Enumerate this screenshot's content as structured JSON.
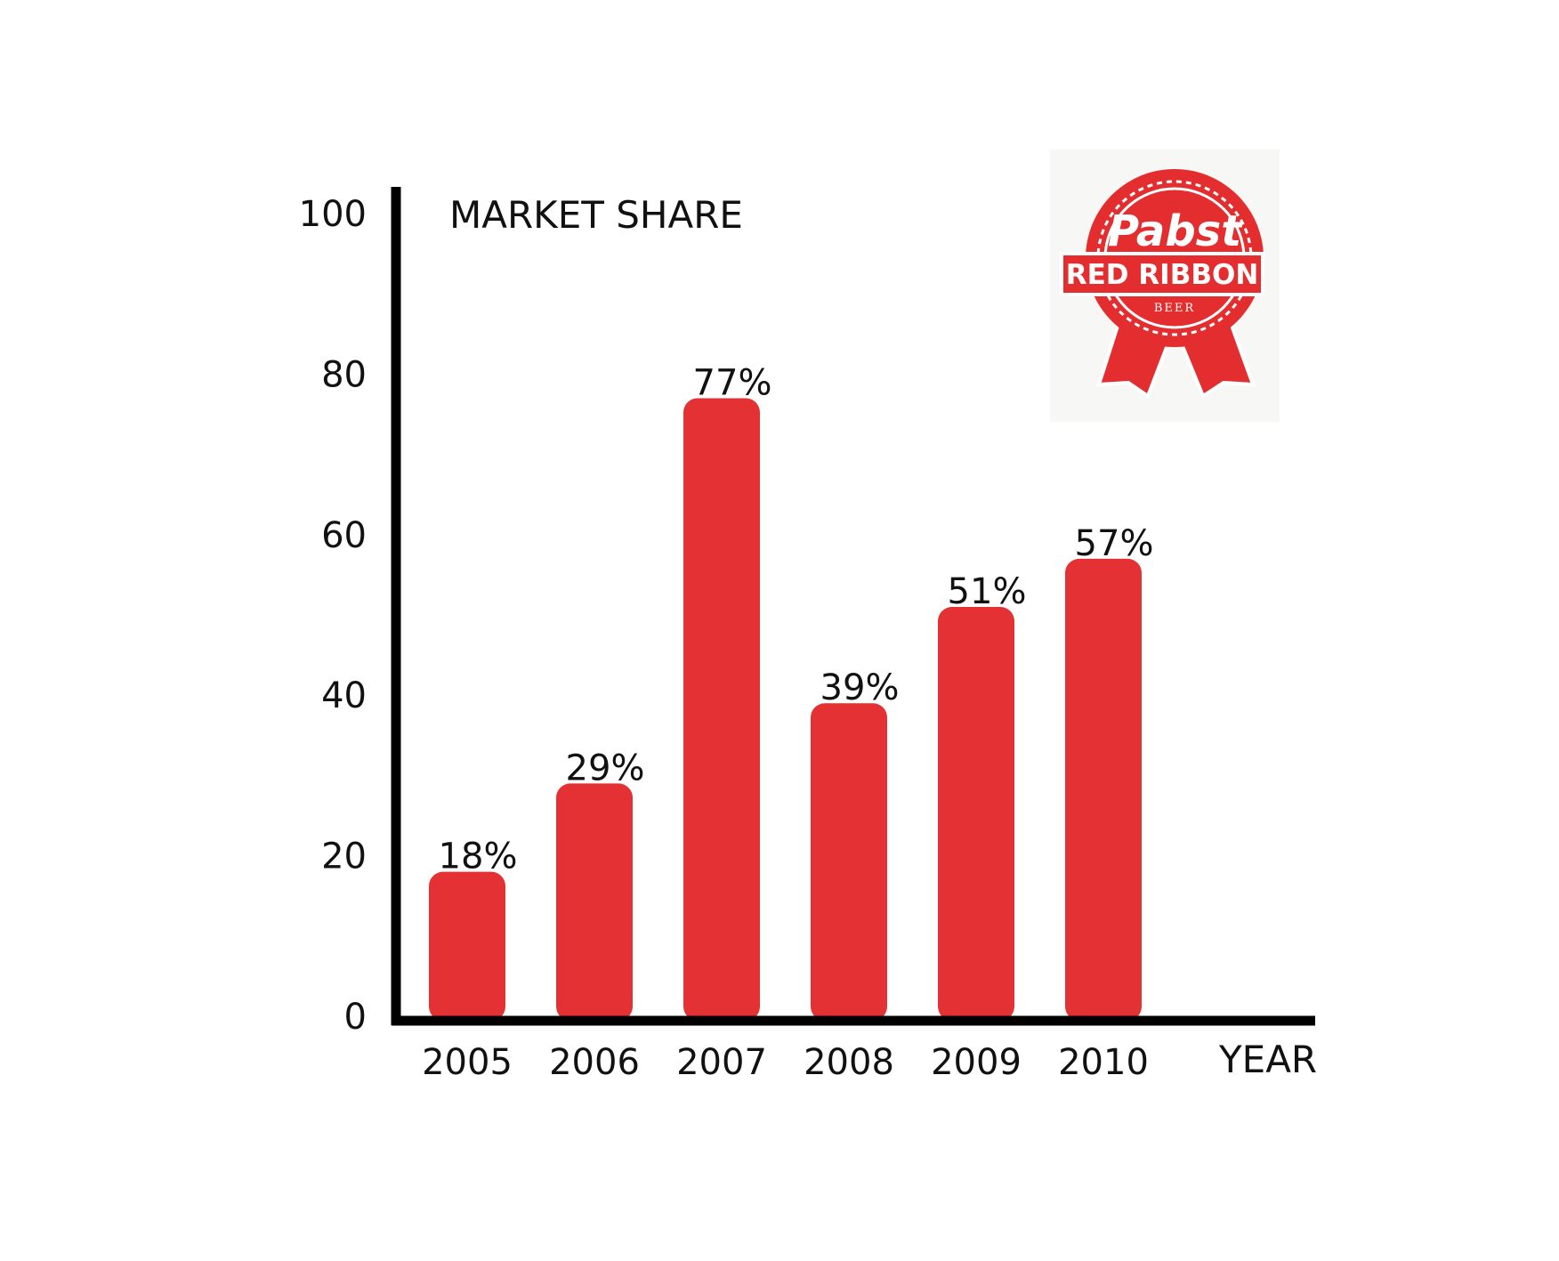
{
  "chart_data": {
    "type": "bar",
    "categories": [
      "2005",
      "2006",
      "2007",
      "2008",
      "2009",
      "2010"
    ],
    "values": [
      18,
      29,
      77,
      39,
      51,
      57
    ],
    "data_labels": [
      "18%",
      "29%",
      "77%",
      "39%",
      "51%",
      "57%"
    ],
    "title": "",
    "ylabel": "MARKET SHARE",
    "xlabel": "YEAR",
    "ylim": [
      0,
      100
    ],
    "yticks": [
      "0",
      "20",
      "40",
      "60",
      "80",
      "100"
    ],
    "grid": false,
    "bar_color": "#e33134"
  },
  "logo": {
    "brand": "Pabst",
    "name": "RED RIBBON",
    "sub": "BEER",
    "color": "#e32d2f"
  }
}
